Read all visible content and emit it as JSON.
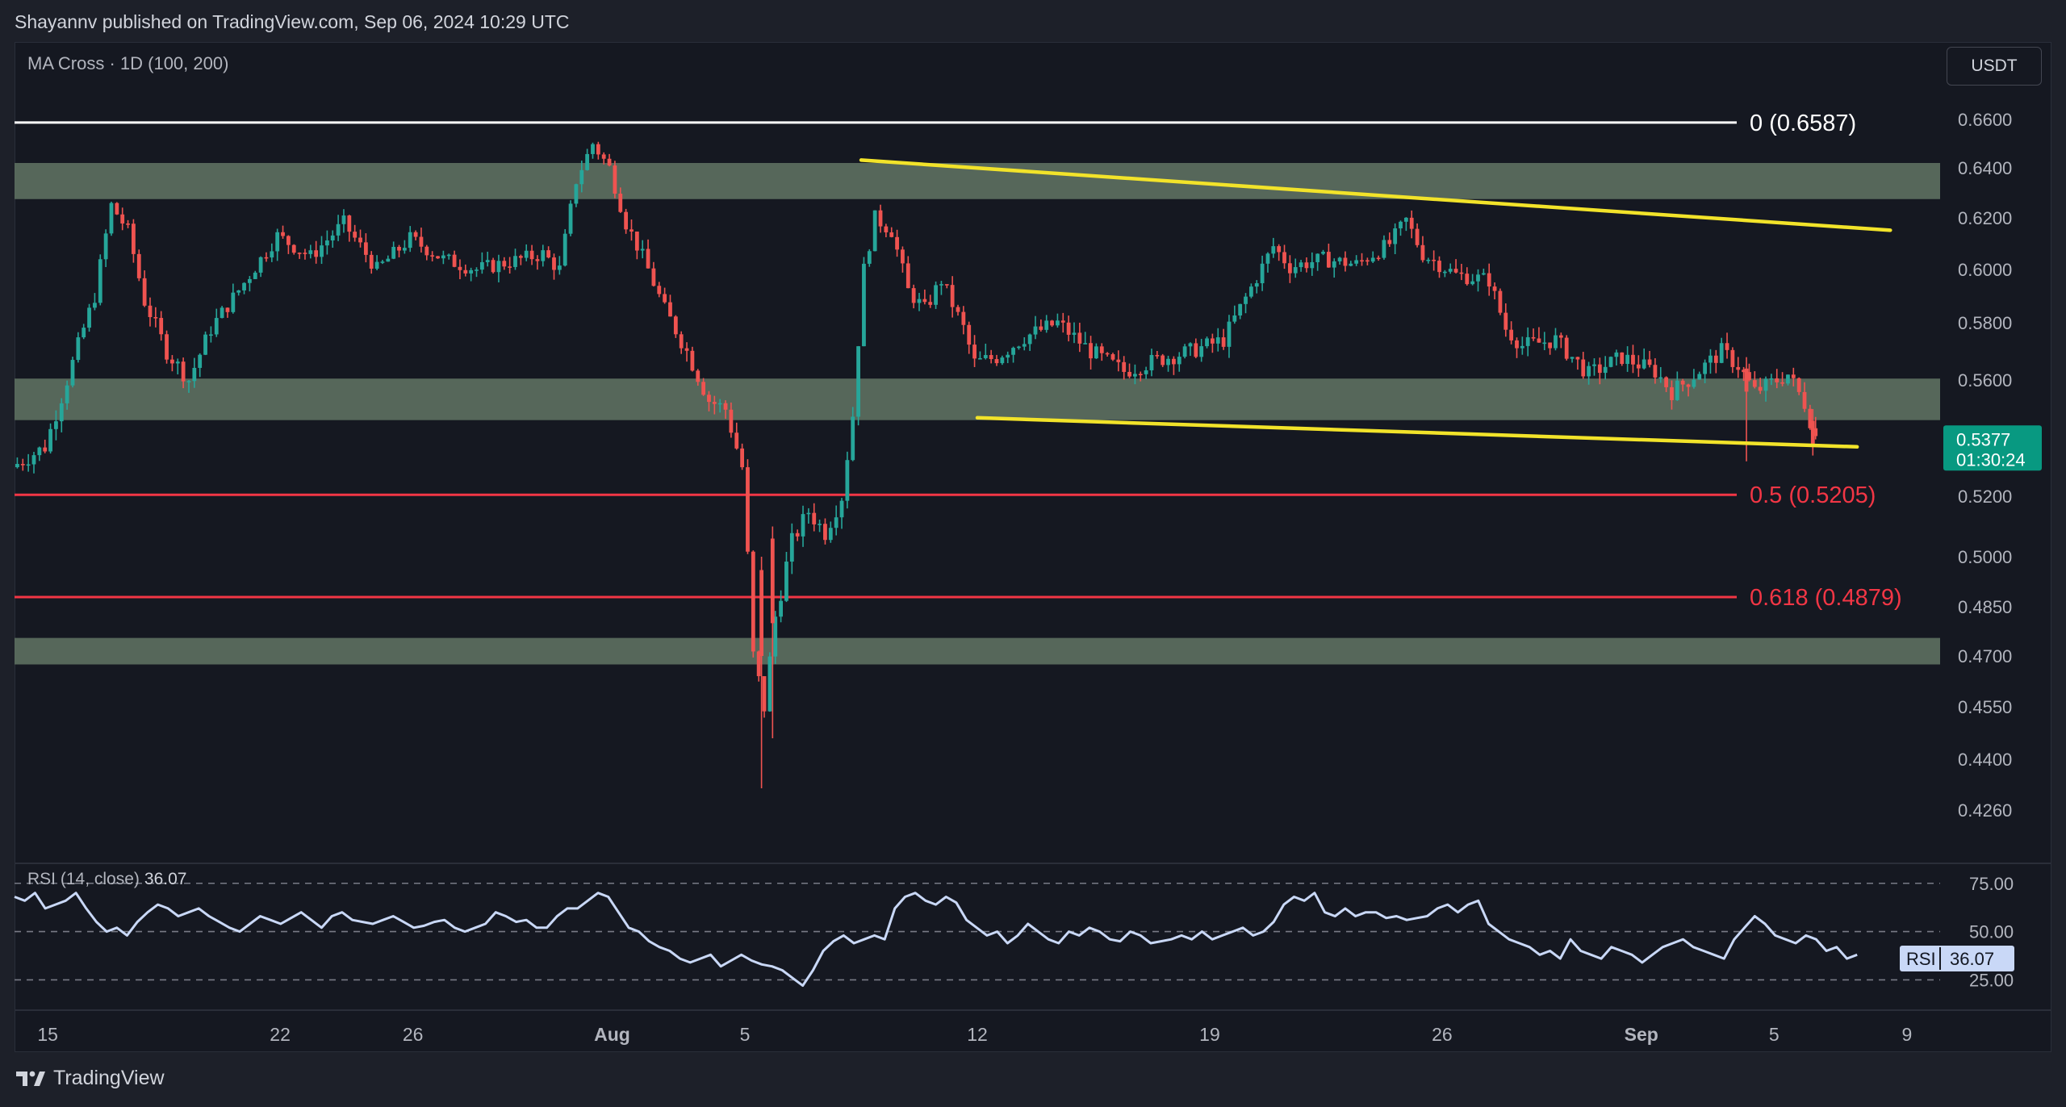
{
  "header": {
    "publisher_line": "Shayannv published on TradingView.com, Sep 06, 2024 10:29 UTC"
  },
  "toolbar": {
    "indicator": "MA Cross · 1D (100, 200)",
    "currency": "USDT"
  },
  "footer": {
    "brand": "TradingView"
  },
  "colors": {
    "up": "#26a69a",
    "down": "#ef5350",
    "zone": "#5b6e5f",
    "trendline": "#f2e32a",
    "fib_red": "#f23645",
    "fib_white": "#ffffff",
    "rsi_line": "#c9d8f7",
    "price_badge": "#089981"
  },
  "chart_data": [
    {
      "type": "candlestick",
      "title": "",
      "y_axis": {
        "ticks": [
          0.66,
          0.64,
          0.62,
          0.6,
          0.58,
          0.56,
          0.52,
          0.5,
          0.485,
          0.47,
          0.455,
          0.44,
          0.426
        ],
        "tick_labels": [
          "0.6600",
          "0.6400",
          "0.6200",
          "0.6000",
          "0.5800",
          "0.5600",
          "0.5200",
          "0.5000",
          "0.4850",
          "0.4700",
          "0.4550",
          "0.4400",
          "0.4260"
        ]
      },
      "x_axis": {
        "start_date": "2024-07-14",
        "end_date": "2024-09-10",
        "ticks": [
          {
            "date": "2024-07-15",
            "label": "15"
          },
          {
            "date": "2024-07-22",
            "label": "22"
          },
          {
            "date": "2024-07-26",
            "label": "26"
          },
          {
            "date": "2024-08-01",
            "label": "Aug"
          },
          {
            "date": "2024-08-05",
            "label": "5"
          },
          {
            "date": "2024-08-12",
            "label": "12"
          },
          {
            "date": "2024-08-19",
            "label": "19"
          },
          {
            "date": "2024-08-26",
            "label": "26"
          },
          {
            "date": "2024-09-01",
            "label": "Sep"
          },
          {
            "date": "2024-09-05",
            "label": "5"
          },
          {
            "date": "2024-09-09",
            "label": "9"
          }
        ]
      },
      "price_path": [
        {
          "date": "2024-07-14T00:00",
          "price": 0.53
        },
        {
          "date": "2024-07-15T00:00",
          "price": 0.537
        },
        {
          "date": "2024-07-15T16:00",
          "price": 0.56
        },
        {
          "date": "2024-07-16T12:00",
          "price": 0.59
        },
        {
          "date": "2024-07-17T00:00",
          "price": 0.625
        },
        {
          "date": "2024-07-17T12:00",
          "price": 0.615
        },
        {
          "date": "2024-07-18T00:00",
          "price": 0.588
        },
        {
          "date": "2024-07-18T16:00",
          "price": 0.57
        },
        {
          "date": "2024-07-19T08:00",
          "price": 0.56
        },
        {
          "date": "2024-07-20T00:00",
          "price": 0.578
        },
        {
          "date": "2024-07-21T00:00",
          "price": 0.595
        },
        {
          "date": "2024-07-22T00:00",
          "price": 0.613
        },
        {
          "date": "2024-07-23T00:00",
          "price": 0.605
        },
        {
          "date": "2024-07-24T00:00",
          "price": 0.618
        },
        {
          "date": "2024-07-25T00:00",
          "price": 0.6
        },
        {
          "date": "2024-07-26T00:00",
          "price": 0.612
        },
        {
          "date": "2024-07-27T00:00",
          "price": 0.604
        },
        {
          "date": "2024-07-28T00:00",
          "price": 0.6
        },
        {
          "date": "2024-07-29T00:00",
          "price": 0.603
        },
        {
          "date": "2024-07-30T00:00",
          "price": 0.606
        },
        {
          "date": "2024-07-30T12:00",
          "price": 0.6
        },
        {
          "date": "2024-07-31T00:00",
          "price": 0.635
        },
        {
          "date": "2024-07-31T12:00",
          "price": 0.65
        },
        {
          "date": "2024-08-01T00:00",
          "price": 0.64
        },
        {
          "date": "2024-08-01T12:00",
          "price": 0.618
        },
        {
          "date": "2024-08-02T00:00",
          "price": 0.605
        },
        {
          "date": "2024-08-02T16:00",
          "price": 0.585
        },
        {
          "date": "2024-08-03T08:00",
          "price": 0.57
        },
        {
          "date": "2024-08-04T00:00",
          "price": 0.553
        },
        {
          "date": "2024-08-04T12:00",
          "price": 0.55
        },
        {
          "date": "2024-08-05T00:00",
          "price": 0.53
        },
        {
          "date": "2024-08-05T08:00",
          "price": 0.47
        },
        {
          "date": "2024-08-05T16:00",
          "price": 0.455
        },
        {
          "date": "2024-08-06T00:00",
          "price": 0.482
        },
        {
          "date": "2024-08-06T12:00",
          "price": 0.505
        },
        {
          "date": "2024-08-07T00:00",
          "price": 0.515
        },
        {
          "date": "2024-08-07T12:00",
          "price": 0.508
        },
        {
          "date": "2024-08-08T00:00",
          "price": 0.52
        },
        {
          "date": "2024-08-08T08:00",
          "price": 0.548
        },
        {
          "date": "2024-08-08T16:00",
          "price": 0.6
        },
        {
          "date": "2024-08-09T00:00",
          "price": 0.62
        },
        {
          "date": "2024-08-09T12:00",
          "price": 0.615
        },
        {
          "date": "2024-08-10T00:00",
          "price": 0.592
        },
        {
          "date": "2024-08-10T12:00",
          "price": 0.585
        },
        {
          "date": "2024-08-11T00:00",
          "price": 0.596
        },
        {
          "date": "2024-08-11T16:00",
          "price": 0.578
        },
        {
          "date": "2024-08-12T00:00",
          "price": 0.566
        },
        {
          "date": "2024-08-12T16:00",
          "price": 0.568
        },
        {
          "date": "2024-08-13T12:00",
          "price": 0.575
        },
        {
          "date": "2024-08-14T12:00",
          "price": 0.58
        },
        {
          "date": "2024-08-15T12:00",
          "price": 0.57
        },
        {
          "date": "2024-08-16T12:00",
          "price": 0.563
        },
        {
          "date": "2024-08-17T12:00",
          "price": 0.567
        },
        {
          "date": "2024-08-18T12:00",
          "price": 0.57
        },
        {
          "date": "2024-08-19T12:00",
          "price": 0.574
        },
        {
          "date": "2024-08-20T12:00",
          "price": 0.597
        },
        {
          "date": "2024-08-21T00:00",
          "price": 0.609
        },
        {
          "date": "2024-08-21T12:00",
          "price": 0.601
        },
        {
          "date": "2024-08-22T12:00",
          "price": 0.604
        },
        {
          "date": "2024-08-23T12:00",
          "price": 0.602
        },
        {
          "date": "2024-08-24T12:00",
          "price": 0.61
        },
        {
          "date": "2024-08-25T00:00",
          "price": 0.619
        },
        {
          "date": "2024-08-25T12:00",
          "price": 0.606
        },
        {
          "date": "2024-08-26T12:00",
          "price": 0.598
        },
        {
          "date": "2024-08-27T12:00",
          "price": 0.596
        },
        {
          "date": "2024-08-28T00:00",
          "price": 0.578
        },
        {
          "date": "2024-08-28T12:00",
          "price": 0.572
        },
        {
          "date": "2024-08-29T12:00",
          "price": 0.574
        },
        {
          "date": "2024-08-30T12:00",
          "price": 0.562
        },
        {
          "date": "2024-08-31T12:00",
          "price": 0.568
        },
        {
          "date": "2024-09-01T12:00",
          "price": 0.563
        },
        {
          "date": "2024-09-02T00:00",
          "price": 0.556
        },
        {
          "date": "2024-09-02T12:00",
          "price": 0.56
        },
        {
          "date": "2024-09-03T12:00",
          "price": 0.57
        },
        {
          "date": "2024-09-04T00:00",
          "price": 0.565
        },
        {
          "date": "2024-09-04T12:00",
          "price": 0.556
        },
        {
          "date": "2024-09-05T12:00",
          "price": 0.562
        },
        {
          "date": "2024-09-06T00:00",
          "price": 0.552
        },
        {
          "date": "2024-09-06T10:00",
          "price": 0.5377
        }
      ],
      "support_resistance_zones": [
        {
          "low": 0.6275,
          "high": 0.642
        },
        {
          "low": 0.5462,
          "high": 0.5605
        },
        {
          "low": 0.4675,
          "high": 0.4755
        }
      ],
      "fibonacci_levels": [
        {
          "label": "0 (0.6587)",
          "value": 0.6587,
          "color": "#ffffff"
        },
        {
          "label": "0.5 (0.5205)",
          "value": 0.5205,
          "color": "#f23645"
        },
        {
          "label": "0.618 (0.4879)",
          "value": 0.4879,
          "color": "#f23645"
        }
      ],
      "trendlines": [
        {
          "name": "upper",
          "from": {
            "date": "2024-08-08T12:00",
            "price": 0.6432
          },
          "to": {
            "date": "2024-09-08T12:00",
            "price": 0.6152
          }
        },
        {
          "name": "lower",
          "from": {
            "date": "2024-08-12T00:00",
            "price": 0.547
          },
          "to": {
            "date": "2024-09-07T12:00",
            "price": 0.537
          }
        }
      ],
      "current_price": {
        "value": "0.5377",
        "countdown": "01:30:24"
      }
    },
    {
      "type": "line",
      "title": "",
      "indicator_label": "RSI (14, close)",
      "current_value": "36.07",
      "legend_tag": "RSI",
      "y_ticks": [
        75,
        50,
        25
      ],
      "y_tick_labels": [
        "75.00",
        "50.00",
        "25.00"
      ],
      "ylim": [
        16,
        82
      ],
      "series": [
        {
          "values": [
            68,
            66,
            70,
            62,
            64,
            66,
            70,
            62,
            55,
            50,
            52,
            48,
            55,
            60,
            64,
            62,
            58,
            60,
            62,
            58,
            55,
            52,
            50,
            54,
            58,
            56,
            54,
            57,
            60,
            56,
            52,
            58,
            60,
            56,
            55,
            54,
            56,
            58,
            55,
            52,
            53,
            55,
            56,
            52,
            50,
            52,
            54,
            60,
            58,
            55,
            56,
            52,
            52,
            58,
            62,
            62,
            66,
            70,
            68,
            60,
            52,
            50,
            45,
            42,
            40,
            36,
            34,
            36,
            38,
            32,
            35,
            38,
            35,
            33,
            32,
            30,
            26,
            22,
            30,
            40,
            45,
            48,
            44,
            46,
            48,
            46,
            62,
            68,
            70,
            66,
            64,
            68,
            65,
            56,
            52,
            48,
            50,
            44,
            48,
            54,
            50,
            46,
            44,
            50,
            48,
            52,
            50,
            46,
            45,
            50,
            48,
            44,
            45,
            46,
            48,
            46,
            50,
            46,
            48,
            50,
            52,
            48,
            50,
            55,
            64,
            68,
            66,
            70,
            60,
            58,
            62,
            58,
            60,
            60,
            57,
            58,
            56,
            57,
            58,
            62,
            64,
            60,
            64,
            66,
            54,
            50,
            46,
            44,
            42,
            38,
            40,
            36,
            46,
            40,
            38,
            36,
            42,
            40,
            38,
            34,
            38,
            42,
            44,
            46,
            42,
            40,
            38,
            36,
            46,
            52,
            58,
            54,
            48,
            46,
            44,
            48,
            46,
            40,
            42,
            36,
            38
          ]
        }
      ]
    }
  ]
}
